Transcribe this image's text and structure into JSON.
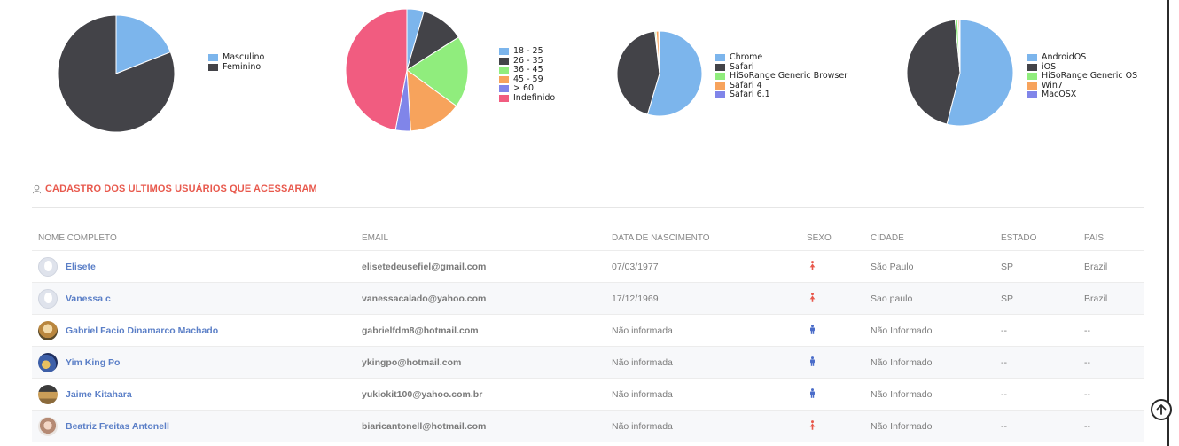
{
  "charts": [
    {
      "type": "pie",
      "slices": [
        {
          "label": "Masculino",
          "value": 19,
          "color": "#7cb5ec"
        },
        {
          "label": "Feminino",
          "value": 81,
          "color": "#434348"
        }
      ]
    },
    {
      "type": "pie",
      "slices": [
        {
          "label": "18 - 25",
          "value": 4.5,
          "color": "#7cb5ec"
        },
        {
          "label": "26 - 35",
          "value": 11.5,
          "color": "#434348"
        },
        {
          "label": "36 - 45",
          "value": 19,
          "color": "#90ed7d"
        },
        {
          "label": "45 - 59",
          "value": 14,
          "color": "#f7a35c"
        },
        {
          "label": "> 60",
          "value": 4,
          "color": "#8085e9"
        },
        {
          "label": "Indefinido",
          "value": 47,
          "color": "#f15c80"
        }
      ]
    },
    {
      "type": "pie",
      "slices": [
        {
          "label": "Chrome",
          "value": 55,
          "color": "#7cb5ec"
        },
        {
          "label": "Safari",
          "value": 44,
          "color": "#434348"
        },
        {
          "label": "HiSoRange Generic Browser",
          "value": 0.5,
          "color": "#90ed7d"
        },
        {
          "label": "Safari 4",
          "value": 1,
          "color": "#f7a35c"
        },
        {
          "label": "Safari 6.1",
          "value": 0.3,
          "color": "#8085e9"
        }
      ]
    },
    {
      "type": "pie",
      "slices": [
        {
          "label": "AndroidOS",
          "value": 54,
          "color": "#7cb5ec"
        },
        {
          "label": "iOS",
          "value": 44.5,
          "color": "#434348"
        },
        {
          "label": "HiSoRange Generic OS",
          "value": 0.8,
          "color": "#90ed7d"
        },
        {
          "label": "Win7",
          "value": 0.4,
          "color": "#f7a35c"
        },
        {
          "label": "MacOSX",
          "value": 0.3,
          "color": "#8085e9"
        }
      ]
    }
  ],
  "section": {
    "title": "CADASTRO DOS ULTIMOS USUÁRIOS QUE ACESSARAM",
    "icon": "user-icon",
    "title_color": "#e8594d"
  },
  "table": {
    "headers": [
      "NOME COMPLETO",
      "EMAIL",
      "DATA DE NASCIMENTO",
      "SEXO",
      "CIDADE",
      "ESTADO",
      "PAIS"
    ],
    "rows": [
      {
        "name": "Elisete",
        "email": "elisetedeusefiel@gmail.com",
        "birth": "07/03/1977",
        "sex": "female",
        "city": "São Paulo",
        "state": "SP",
        "country": "Brazil",
        "avatar": "blank"
      },
      {
        "name": "Vanessa c",
        "email": "vanessacalado@yahoo.com",
        "birth": "17/12/1969",
        "sex": "female",
        "city": "Sao paulo",
        "state": "SP",
        "country": "Brazil",
        "avatar": "blank"
      },
      {
        "name": "Gabriel Facio Dinamarco Machado",
        "email": "gabrielfdm8@hotmail.com",
        "birth": "Não informada",
        "sex": "male",
        "city": "Não Informado",
        "state": "--",
        "country": "--",
        "avatar": "photo1"
      },
      {
        "name": "Yim King Po",
        "email": "ykingpo@hotmail.com",
        "birth": "Não informada",
        "sex": "male",
        "city": "Não Informado",
        "state": "--",
        "country": "--",
        "avatar": "photo2"
      },
      {
        "name": "Jaime Kitahara",
        "email": "yukiokit100@yahoo.com.br",
        "birth": "Não informada",
        "sex": "male",
        "city": "Não Informado",
        "state": "--",
        "country": "--",
        "avatar": "photo3"
      },
      {
        "name": "Beatriz Freitas Antonell",
        "email": "biaricantonell@hotmail.com",
        "birth": "Não informada",
        "sex": "female",
        "city": "Não Informado",
        "state": "--",
        "country": "--",
        "avatar": "photo4"
      }
    ]
  },
  "colors": {
    "female": "#e8594d",
    "male": "#4a6cc9"
  },
  "scroll_top_icon": "arrow-up-circle-icon"
}
